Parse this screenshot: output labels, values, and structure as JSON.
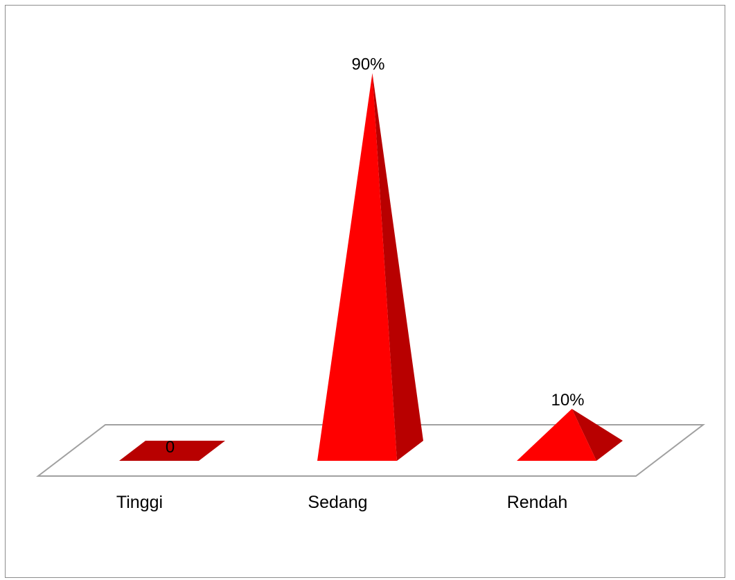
{
  "chart_data": {
    "type": "bar",
    "style": "3d-pyramid",
    "categories": [
      "Tinggi",
      "Sedang",
      "Rendah"
    ],
    "values": [
      0,
      90,
      10
    ],
    "data_labels": [
      "0",
      "90%",
      "10%"
    ],
    "title": "",
    "xlabel": "",
    "ylabel": "",
    "ylim": [
      0,
      90
    ],
    "grid": false,
    "legend": "none",
    "colors": {
      "front": "#ff0000",
      "side": "#b80000",
      "floor_edge": "#a0a0a0",
      "frame": "#8c8c8c"
    }
  }
}
